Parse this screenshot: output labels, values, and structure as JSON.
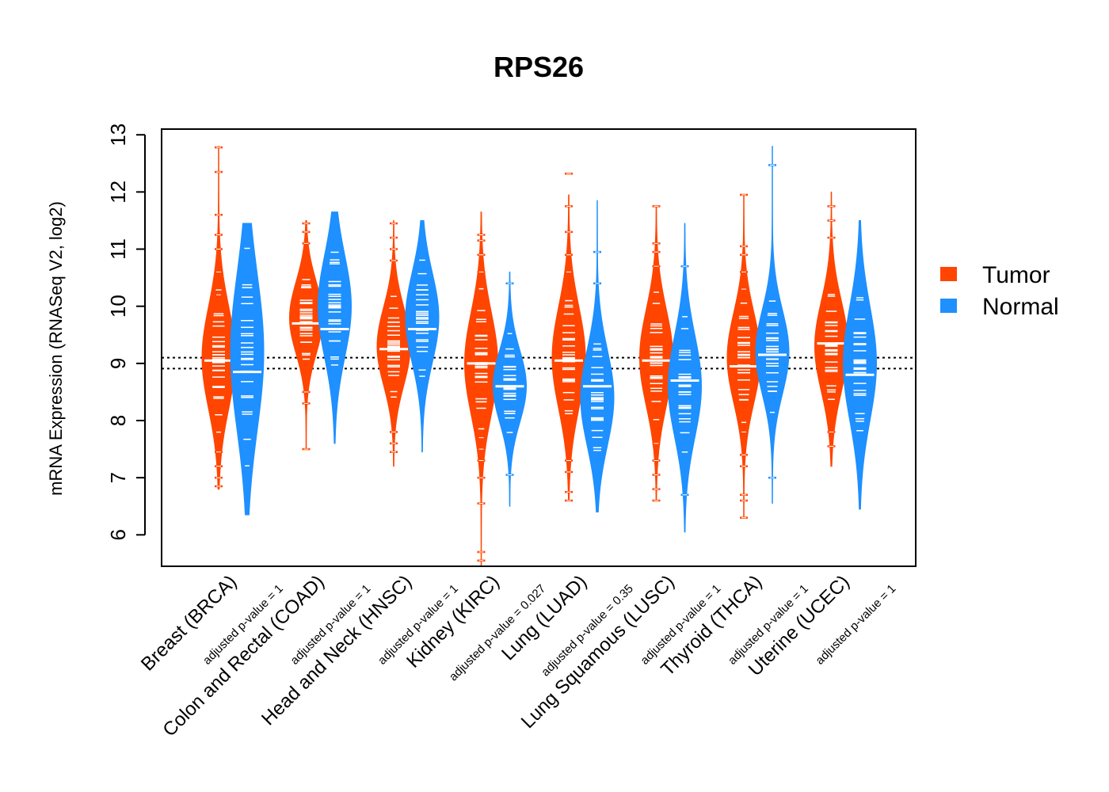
{
  "chart_data": {
    "type": "beanplot",
    "title": "RPS26",
    "ylabel": "mRNA Expression (RNASeq V2, log2)",
    "xlabel": "",
    "ylim": [
      5.45,
      13.1
    ],
    "yticks": [
      6,
      7,
      8,
      9,
      10,
      11,
      12,
      13
    ],
    "reference_lines": [
      8.91,
      9.1
    ],
    "colors": {
      "Tumor": "#ff4500",
      "Normal": "#1e90ff",
      "median": "#ffffff",
      "reference": "#000000"
    },
    "legend": [
      {
        "name": "Tumor",
        "color": "#ff4500"
      },
      {
        "name": "Normal",
        "color": "#1e90ff"
      }
    ],
    "legend_position": "right",
    "categories": [
      {
        "label": "Breast (BRCA)",
        "pvalue": "adjusted p-value = 1",
        "tumor": {
          "min": 6.8,
          "max": 12.8,
          "median": 9.05,
          "peak": 9.1,
          "spread": 0.85,
          "outliers": [
            6.85,
            7.0,
            7.2,
            7.45,
            10.2,
            10.6,
            11.0,
            11.25,
            11.6,
            12.35,
            12.78
          ]
        },
        "normal": {
          "min": 6.35,
          "max": 11.45,
          "median": 8.85,
          "peak": 9.2,
          "spread": 1.3,
          "outliers": []
        }
      },
      {
        "label": "Colon and Rectal (COAD)",
        "pvalue": "adjusted p-value = 1",
        "tumor": {
          "min": 7.5,
          "max": 11.5,
          "median": 9.7,
          "peak": 9.8,
          "spread": 0.6,
          "outliers": [
            7.5,
            8.3,
            8.5,
            11.1,
            11.3,
            11.45
          ]
        },
        "normal": {
          "min": 7.6,
          "max": 11.65,
          "median": 9.6,
          "peak": 10.0,
          "spread": 0.85,
          "outliers": []
        }
      },
      {
        "label": "Head and Neck (HNSC)",
        "pvalue": "adjusted p-value = 1",
        "tumor": {
          "min": 7.2,
          "max": 11.5,
          "median": 9.25,
          "peak": 9.3,
          "spread": 0.65,
          "outliers": [
            7.45,
            7.6,
            7.8,
            10.8,
            11.0,
            11.2,
            11.45
          ]
        },
        "normal": {
          "min": 7.45,
          "max": 11.5,
          "median": 9.6,
          "peak": 9.8,
          "spread": 0.75,
          "outliers": []
        }
      },
      {
        "label": "Kidney (KIRC)",
        "pvalue": "adjusted p-value = 0.027",
        "tumor": {
          "min": 5.45,
          "max": 11.65,
          "median": 9.0,
          "peak": 9.0,
          "spread": 0.85,
          "outliers": [
            5.55,
            5.7,
            6.55,
            7.0,
            7.3,
            7.5,
            7.7,
            10.6,
            10.9,
            11.15,
            11.25
          ]
        },
        "normal": {
          "min": 6.5,
          "max": 10.6,
          "median": 8.6,
          "peak": 8.6,
          "spread": 0.6,
          "outliers": [
            7.05,
            10.4
          ]
        },
        "tumor_line": true
      },
      {
        "label": "Lung (LUAD)",
        "pvalue": "adjusted p-value = 0.35",
        "tumor": {
          "min": 6.6,
          "max": 11.95,
          "median": 9.05,
          "peak": 9.1,
          "spread": 0.85,
          "outliers": [
            6.6,
            6.75,
            7.1,
            7.3,
            10.6,
            10.9,
            11.3,
            11.75,
            12.32
          ]
        },
        "normal": {
          "min": 6.4,
          "max": 11.85,
          "median": 8.6,
          "peak": 8.4,
          "spread": 0.8,
          "outliers": [
            10.4,
            10.95
          ]
        }
      },
      {
        "label": "Lung Squamous (LUSC)",
        "pvalue": "adjusted p-value = 1",
        "tumor": {
          "min": 6.6,
          "max": 11.75,
          "median": 9.05,
          "peak": 9.1,
          "spread": 0.8,
          "outliers": [
            6.6,
            6.8,
            7.05,
            7.3,
            7.6,
            10.7,
            10.95,
            11.1,
            11.75
          ]
        },
        "normal": {
          "min": 6.05,
          "max": 11.45,
          "median": 8.7,
          "peak": 8.6,
          "spread": 0.85,
          "outliers": [
            6.7,
            10.7
          ]
        }
      },
      {
        "label": "Thyroid (THCA)",
        "pvalue": "adjusted p-value = 1",
        "tumor": {
          "min": 6.3,
          "max": 11.95,
          "median": 8.95,
          "peak": 9.1,
          "spread": 0.75,
          "outliers": [
            6.3,
            6.6,
            6.7,
            7.2,
            7.4,
            7.8,
            10.3,
            10.6,
            10.9,
            11.05,
            11.95
          ]
        },
        "normal": {
          "min": 6.55,
          "max": 12.8,
          "median": 9.15,
          "peak": 9.2,
          "spread": 0.7,
          "outliers": [
            7.0,
            12.47
          ]
        }
      },
      {
        "label": "Uterine (UCEC)",
        "pvalue": "adjusted p-value = 1",
        "tumor": {
          "min": 7.2,
          "max": 12.0,
          "median": 9.35,
          "peak": 9.3,
          "spread": 0.75,
          "outliers": [
            7.55,
            7.8,
            11.2,
            11.5,
            11.75
          ]
        },
        "normal": {
          "min": 6.45,
          "max": 11.5,
          "median": 8.8,
          "peak": 9.0,
          "spread": 0.95,
          "outliers": []
        }
      }
    ]
  }
}
